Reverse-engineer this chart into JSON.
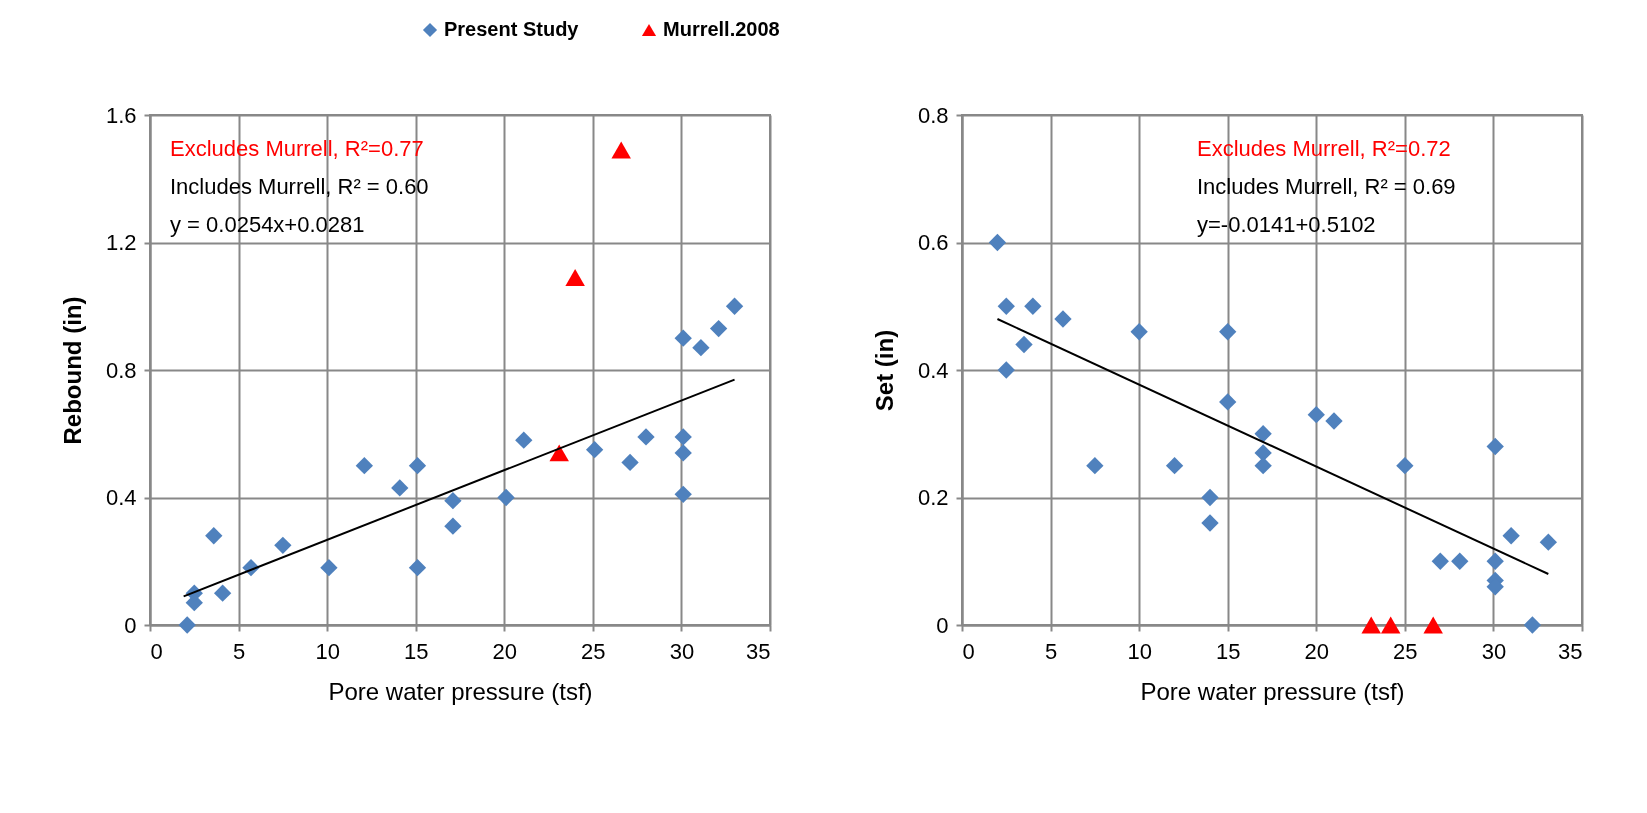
{
  "chart_data": [
    {
      "type": "scatter",
      "xlabel": "Pore water pressure (tsf)",
      "ylabel": "Rebound (in)",
      "xlim": [
        0,
        35
      ],
      "xticks": [
        0,
        5,
        10,
        15,
        20,
        25,
        30,
        35
      ],
      "ylim": [
        0,
        1.6
      ],
      "yticks": [
        0,
        0.4,
        0.8,
        1.2,
        1.6
      ],
      "grid": true,
      "legend": "top",
      "annotations": [
        "Excludes Murrell, R²=0.77",
        "Includes Murrell, R² = 0.60",
        "y = 0.0254x+0.0281"
      ],
      "series": [
        {
          "name": "Present Study",
          "marker": "diamond",
          "color": "#4f81bd",
          "x": [
            2.1,
            2.5,
            2.5,
            4.1,
            3.6,
            5.7,
            7.5,
            10.1,
            12.1,
            14.1,
            15.1,
            15.1,
            17.1,
            17.1,
            20.1,
            21.1,
            25.1,
            27.1,
            28.0,
            30.1,
            30.1,
            30.1,
            30.1,
            31.1,
            32.1,
            33.0
          ],
          "values": [
            0,
            0.07,
            0.1,
            0.1,
            0.28,
            0.18,
            0.25,
            0.18,
            0.5,
            0.43,
            0.5,
            0.18,
            0.39,
            0.31,
            0.4,
            0.58,
            0.55,
            0.51,
            0.59,
            0.59,
            0.54,
            0.41,
            0.9,
            0.87,
            0.93,
            1.0
          ]
        },
        {
          "name": "Murrell.2008",
          "marker": "triangle",
          "color": "#ff0000",
          "x": [
            23.1,
            24.0,
            26.6
          ],
          "values": [
            0.54,
            1.09,
            1.49
          ]
        },
        {
          "type": "line",
          "color": "#000000",
          "x": [
            1.9,
            33.0
          ],
          "values": [
            0.09,
            0.77
          ]
        }
      ]
    },
    {
      "type": "scatter",
      "xlabel": "Pore water pressure (tsf)",
      "ylabel": "Set (in)",
      "xlim": [
        0,
        35
      ],
      "xticks": [
        0,
        5,
        10,
        15,
        20,
        25,
        30,
        35
      ],
      "ylim": [
        0,
        0.8
      ],
      "yticks": [
        0,
        0.2,
        0.4,
        0.6,
        0.8
      ],
      "grid": true,
      "annotations": [
        "Excludes Murrell, R²=0.72",
        "Includes Murrell, R² = 0.69",
        "y=-0.0141+0.5102"
      ],
      "series": [
        {
          "marker": "diamond",
          "color": "#4f81bd",
          "x": [
            2.0,
            2.5,
            4.0,
            5.7,
            3.5,
            2.5,
            10.0,
            15.0,
            15.0,
            7.5,
            12.0,
            14.0,
            14.0,
            17.0,
            17.0,
            17.0,
            20.0,
            21.0,
            25.0,
            30.1,
            27.0,
            28.1,
            30.1,
            30.1,
            30.1,
            31.0,
            33.1,
            32.2
          ],
          "values": [
            0.6,
            0.5,
            0.5,
            0.48,
            0.44,
            0.4,
            0.46,
            0.46,
            0.35,
            0.25,
            0.25,
            0.2,
            0.16,
            0.3,
            0.27,
            0.25,
            0.33,
            0.32,
            0.25,
            0.28,
            0.1,
            0.1,
            0.1,
            0.07,
            0.06,
            0.14,
            0.13,
            0
          ]
        },
        {
          "marker": "triangle",
          "color": "#ff0000",
          "x": [
            23.1,
            24.2,
            26.6
          ],
          "values": [
            0,
            0,
            0
          ]
        },
        {
          "type": "line",
          "color": "#000000",
          "x": [
            2.0,
            33.1
          ],
          "values": [
            0.48,
            0.08
          ]
        }
      ]
    }
  ]
}
